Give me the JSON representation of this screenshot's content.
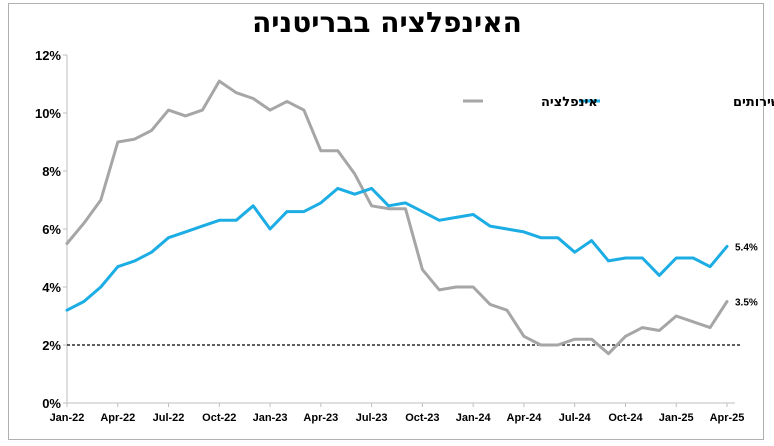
{
  "chart_data": {
    "type": "line",
    "title": "האינפלציה בבריטניה",
    "x_tick_labels": [
      "Jan-22",
      "Apr-22",
      "Jul-22",
      "Oct-22",
      "Jan-23",
      "Apr-23",
      "Jul-23",
      "Oct-23",
      "Jan-24",
      "Apr-24",
      "Jul-24",
      "Oct-24",
      "Jan-25",
      "Apr-25"
    ],
    "y_tick_labels": [
      "0%",
      "2%",
      "4%",
      "6%",
      "8%",
      "10%",
      "12%"
    ],
    "ylim": [
      0,
      12
    ],
    "y_unit": "%",
    "reference_line": {
      "y": 2,
      "style": "dashed",
      "color": "#000000"
    },
    "grid": false,
    "legend_position": "top-right",
    "x": [
      "2022-01",
      "2022-02",
      "2022-03",
      "2022-04",
      "2022-05",
      "2022-06",
      "2022-07",
      "2022-08",
      "2022-09",
      "2022-10",
      "2022-11",
      "2022-12",
      "2023-01",
      "2023-02",
      "2023-03",
      "2023-04",
      "2023-05",
      "2023-06",
      "2023-07",
      "2023-08",
      "2023-09",
      "2023-10",
      "2023-11",
      "2023-12",
      "2024-01",
      "2024-02",
      "2024-03",
      "2024-04",
      "2024-05",
      "2024-06",
      "2024-07",
      "2024-08",
      "2024-09",
      "2024-10",
      "2024-11",
      "2024-12",
      "2025-01",
      "2025-02",
      "2025-03",
      "2025-04"
    ],
    "series": [
      {
        "name": "אינפלציה",
        "color": "#a6a6a6",
        "values": [
          5.5,
          6.2,
          7.0,
          9.0,
          9.1,
          9.4,
          10.1,
          9.9,
          10.1,
          11.1,
          10.7,
          10.5,
          10.1,
          10.4,
          10.1,
          8.7,
          8.7,
          7.9,
          6.8,
          6.7,
          6.7,
          4.6,
          3.9,
          4.0,
          4.0,
          3.4,
          3.2,
          2.3,
          2.0,
          2.0,
          2.2,
          2.2,
          1.7,
          2.3,
          2.6,
          2.5,
          3.0,
          2.8,
          2.6,
          3.5
        ],
        "end_label": "3.5%"
      },
      {
        "name": "אינפלצית השירותים",
        "color": "#1cade4",
        "values": [
          3.2,
          3.5,
          4.0,
          4.7,
          4.9,
          5.2,
          5.7,
          5.9,
          6.1,
          6.3,
          6.3,
          6.8,
          6.0,
          6.6,
          6.6,
          6.9,
          7.4,
          7.2,
          7.4,
          6.8,
          6.9,
          6.6,
          6.3,
          6.4,
          6.5,
          6.1,
          6.0,
          5.9,
          5.7,
          5.7,
          5.2,
          5.6,
          4.9,
          5.0,
          5.0,
          4.4,
          5.0,
          5.0,
          4.7,
          5.4
        ],
        "end_label": "5.4%"
      }
    ]
  }
}
